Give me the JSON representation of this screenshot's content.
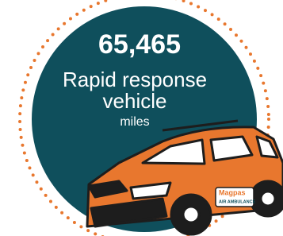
{
  "stat": {
    "value": "65,465",
    "label_lines": [
      "Rapid response",
      "vehicle"
    ],
    "unit": "miles"
  },
  "vehicle_decal": {
    "brand": "Magpas",
    "subtitle": "AIR AMBULANCE"
  }
}
